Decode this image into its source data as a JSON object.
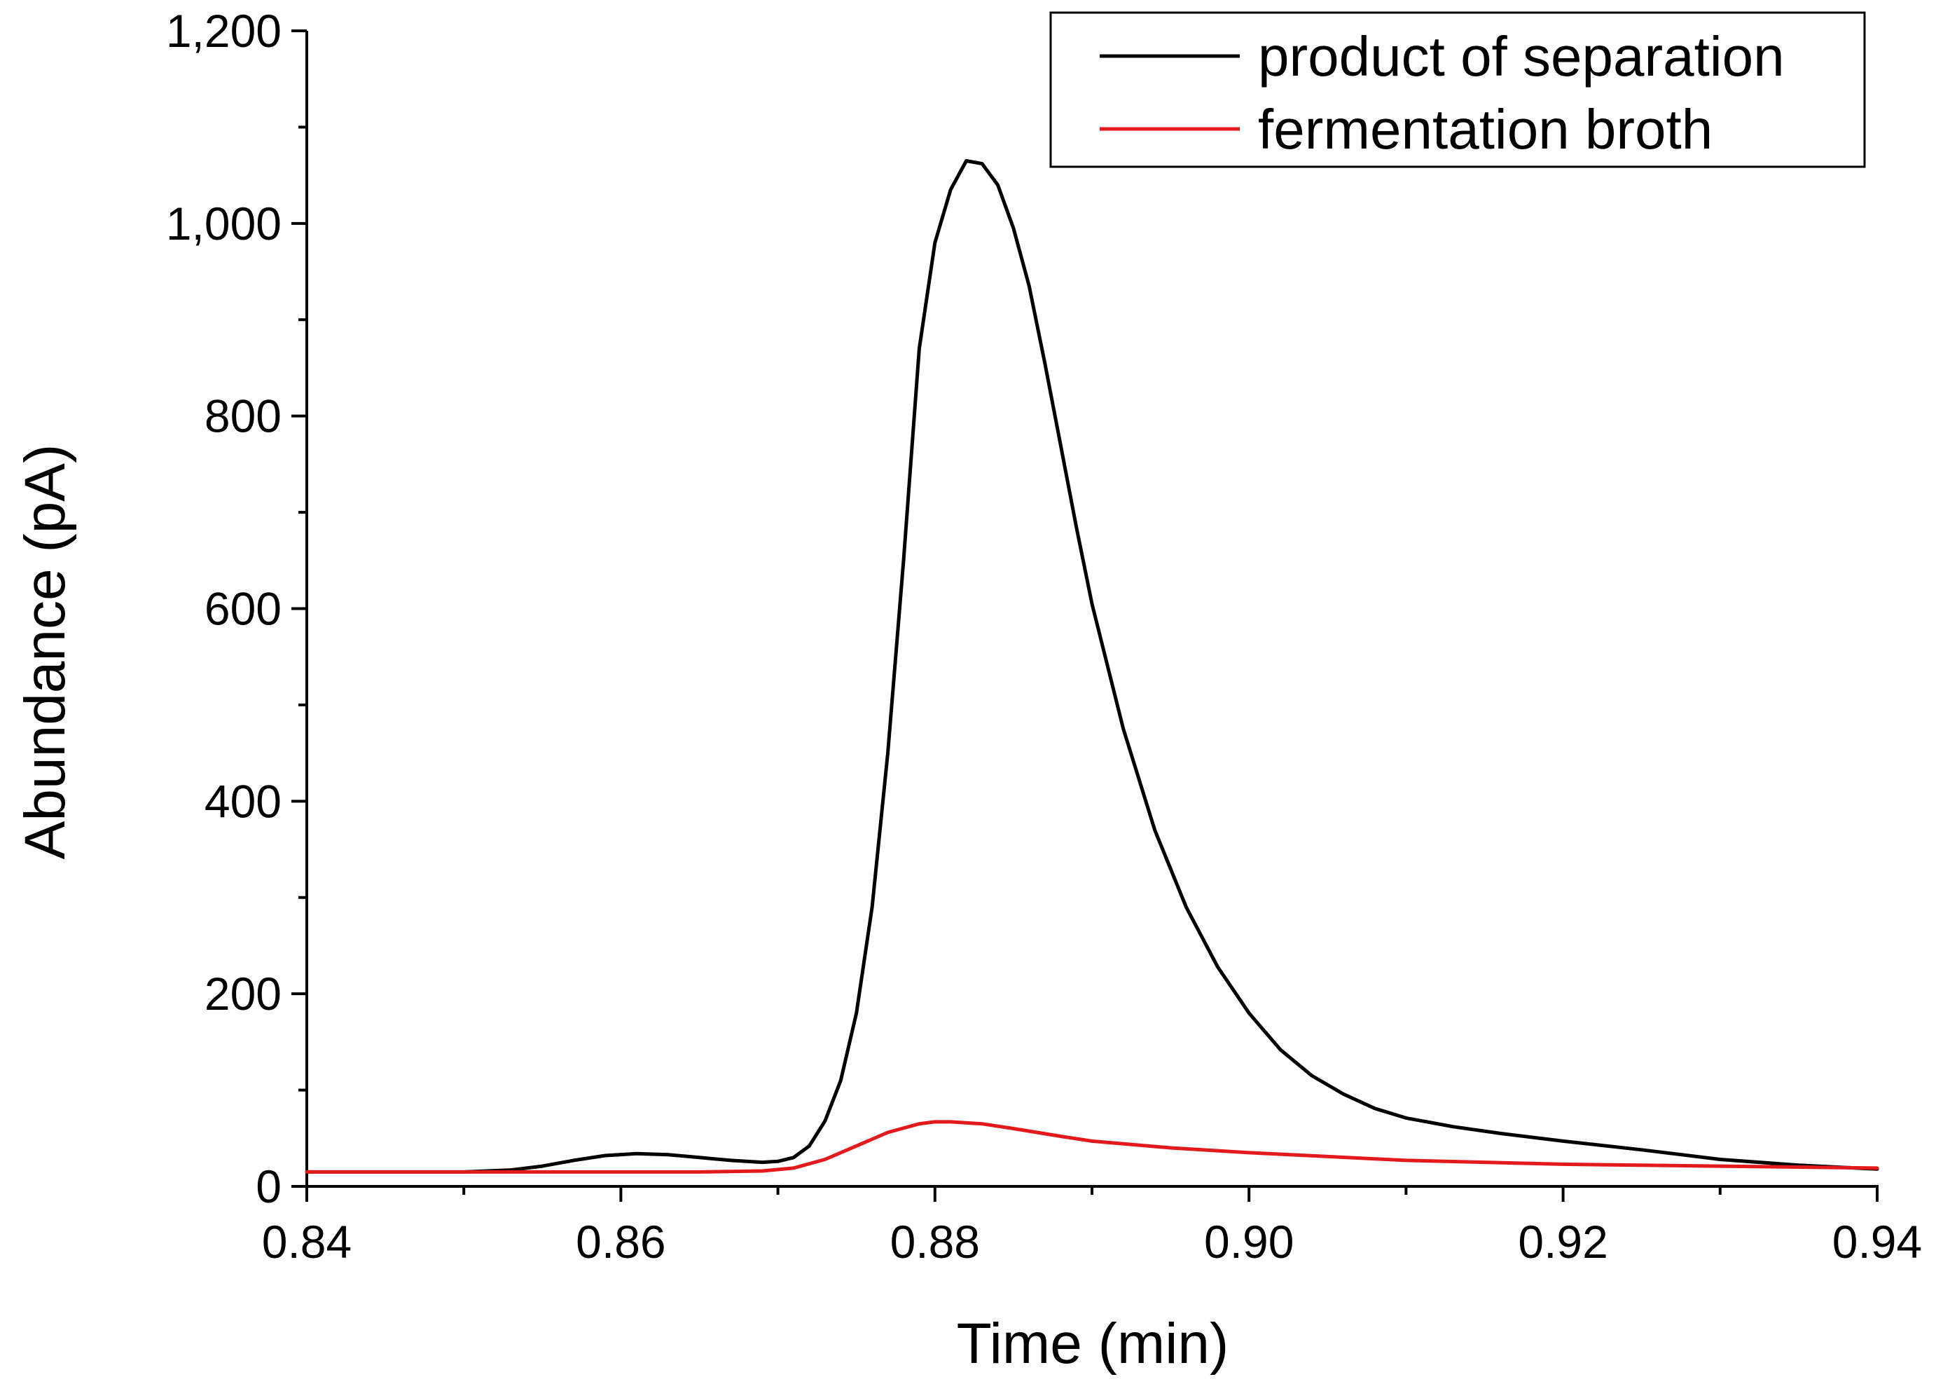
{
  "chart_data": {
    "type": "line",
    "title": "",
    "xlabel": "Time (min)",
    "ylabel": "Abundance (pA)",
    "xlim": [
      0.84,
      0.94
    ],
    "ylim": [
      0,
      1200
    ],
    "xticks": [
      0.84,
      0.86,
      0.88,
      0.9,
      0.92,
      0.94
    ],
    "xtick_labels": [
      "0.84",
      "0.86",
      "0.88",
      "0.90",
      "0.92",
      "0.94"
    ],
    "yticks": [
      0,
      200,
      400,
      600,
      800,
      1000,
      1200
    ],
    "ytick_labels": [
      "0",
      "200",
      "400",
      "600",
      "800",
      "1,000",
      "1,200"
    ],
    "grid": false,
    "legend_position": "top-right",
    "series": [
      {
        "name": "product of separation",
        "color": "#000000",
        "x": [
          0.84,
          0.845,
          0.85,
          0.853,
          0.855,
          0.857,
          0.859,
          0.861,
          0.863,
          0.865,
          0.867,
          0.869,
          0.87,
          0.871,
          0.872,
          0.873,
          0.874,
          0.875,
          0.876,
          0.877,
          0.878,
          0.879,
          0.88,
          0.881,
          0.882,
          0.883,
          0.884,
          0.885,
          0.886,
          0.887,
          0.888,
          0.889,
          0.89,
          0.892,
          0.894,
          0.896,
          0.898,
          0.9,
          0.902,
          0.904,
          0.906,
          0.908,
          0.91,
          0.913,
          0.916,
          0.92,
          0.925,
          0.93,
          0.935,
          0.94
        ],
        "y": [
          15,
          15,
          15,
          17,
          21,
          27,
          32,
          34,
          33,
          30,
          27,
          25,
          26,
          30,
          42,
          68,
          110,
          180,
          290,
          450,
          650,
          870,
          980,
          1035,
          1065,
          1062,
          1040,
          995,
          935,
          855,
          770,
          685,
          605,
          475,
          370,
          290,
          228,
          180,
          142,
          115,
          96,
          81,
          71,
          62,
          55,
          47,
          38,
          28,
          22,
          18
        ]
      },
      {
        "name": "fermentation broth",
        "color": "#e31a1c",
        "x": [
          0.84,
          0.845,
          0.85,
          0.855,
          0.86,
          0.865,
          0.869,
          0.871,
          0.873,
          0.875,
          0.877,
          0.879,
          0.88,
          0.881,
          0.883,
          0.885,
          0.888,
          0.89,
          0.895,
          0.9,
          0.905,
          0.91,
          0.915,
          0.92,
          0.925,
          0.93,
          0.935,
          0.94
        ],
        "y": [
          15,
          15,
          15,
          15,
          15,
          15,
          16,
          19,
          28,
          42,
          56,
          65,
          67,
          67,
          65,
          60,
          52,
          47,
          40,
          35,
          31,
          27,
          25,
          23,
          22,
          21,
          20,
          19
        ]
      }
    ]
  }
}
